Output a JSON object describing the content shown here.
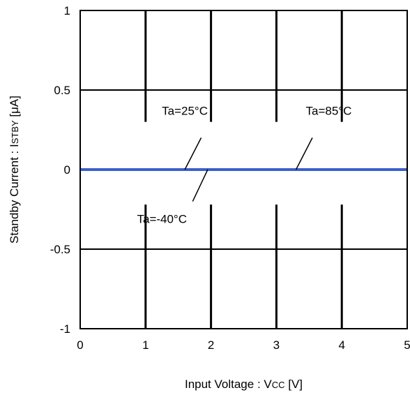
{
  "chart_data": {
    "type": "line",
    "title": "",
    "xlabel": "Input Voltage : V",
    "xlabel_sub": "CC",
    "xlabel_unit": " [V]",
    "ylabel": "Standby Current : I",
    "ylabel_sub": "STBY",
    "ylabel_unit": " [μA]",
    "xlim": [
      0,
      5
    ],
    "ylim": [
      -1,
      1
    ],
    "x_ticks": [
      0,
      1,
      2,
      3,
      4,
      5
    ],
    "x_tick_labels": [
      "0",
      "1",
      "2",
      "3",
      "4",
      "5"
    ],
    "y_ticks": [
      -1,
      -0.5,
      0,
      0.5,
      1
    ],
    "y_tick_labels": [
      "-1",
      "-0.5",
      "0",
      "0.5",
      "1"
    ],
    "grid": true,
    "series": [
      {
        "x": [
          0,
          5
        ],
        "y": [
          0,
          0
        ],
        "color": "#3a5fcd"
      }
    ],
    "annotations": [
      {
        "text": "Ta=25°C",
        "x": 1.6,
        "y": 0.37,
        "line": [
          [
            1.85,
            0.2
          ],
          [
            1.6,
            0.0
          ]
        ]
      },
      {
        "text": "Ta=85°C",
        "x": 3.8,
        "y": 0.37,
        "line": [
          [
            3.55,
            0.2
          ],
          [
            3.3,
            0.0
          ]
        ]
      },
      {
        "text": "Ta=-40°C",
        "x": 1.25,
        "y": -0.31,
        "line": [
          [
            1.95,
            0.0
          ],
          [
            1.72,
            -0.2
          ]
        ]
      }
    ]
  }
}
